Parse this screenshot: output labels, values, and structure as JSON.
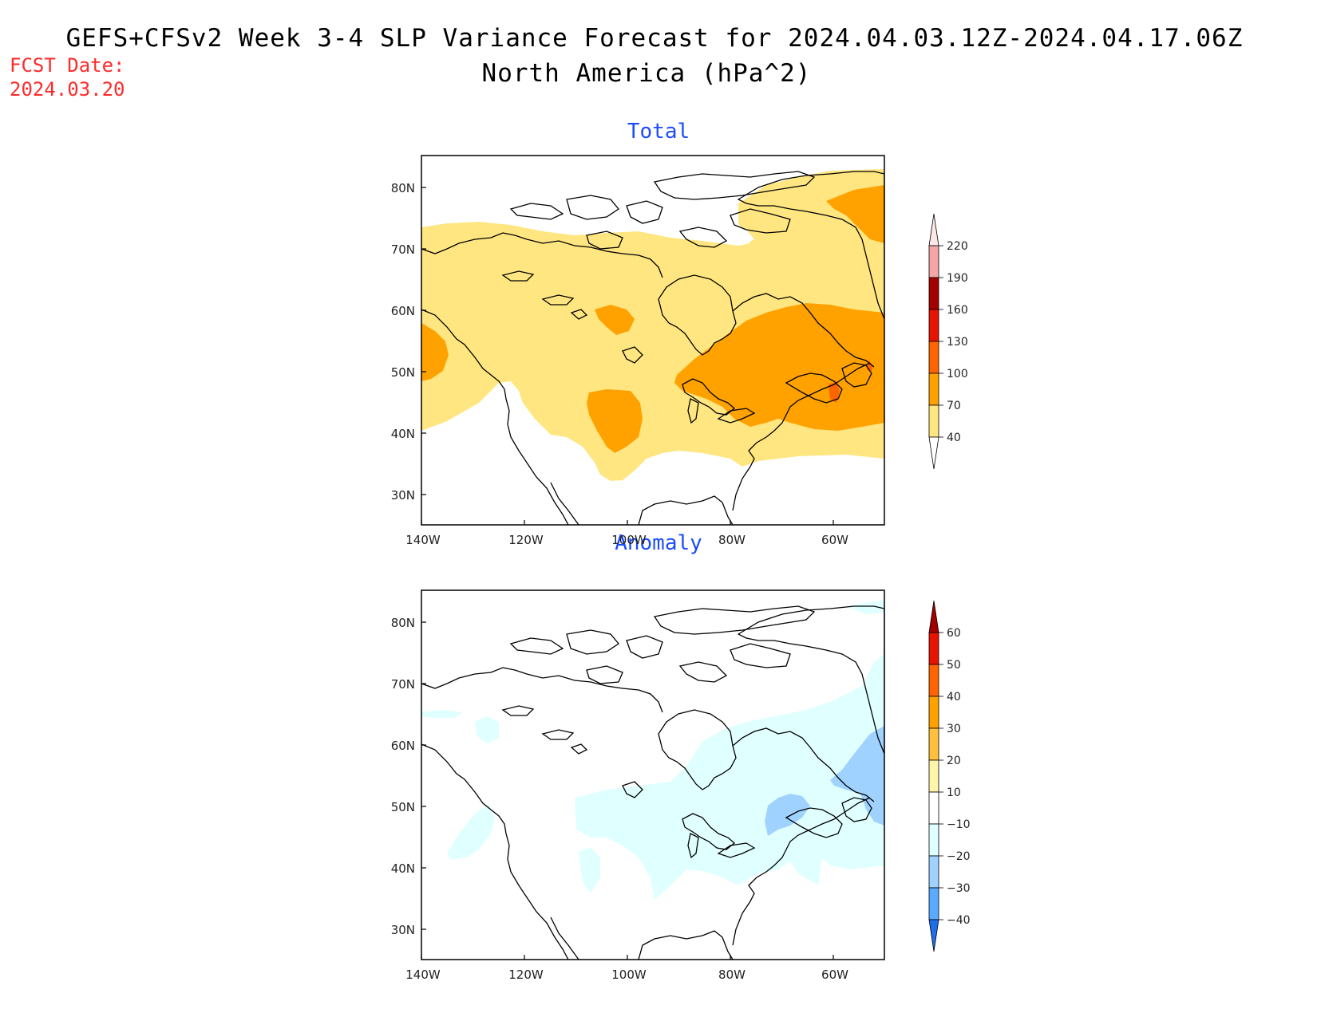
{
  "header": {
    "title_line1": "GEFS+CFSv2 Week 3-4 SLP Variance Forecast for 2024.04.03.12Z-2024.04.17.06Z",
    "title_line2": "North America (hPa^2)",
    "fcst_label": "FCST Date:",
    "fcst_date": "2024.03.20"
  },
  "panels": [
    {
      "title": "Total",
      "lat_labels": [
        "80N",
        "70N",
        "60N",
        "50N",
        "40N",
        "30N"
      ],
      "lon_labels": [
        "140W",
        "120W",
        "100W",
        "80W",
        "60W"
      ],
      "colorbar": {
        "levels": [
          "40",
          "70",
          "100",
          "130",
          "160",
          "190",
          "220"
        ],
        "colors": [
          "#ffe680",
          "#ffa200",
          "#ff6400",
          "#e61400",
          "#a50000",
          "#f4a6a6",
          "#fde6e6"
        ]
      }
    },
    {
      "title": "Anomaly",
      "lat_labels": [
        "80N",
        "70N",
        "60N",
        "50N",
        "40N",
        "30N"
      ],
      "lon_labels": [
        "140W",
        "120W",
        "100W",
        "80W",
        "60W"
      ],
      "colorbar": {
        "levels": [
          "60",
          "50",
          "40",
          "30",
          "20",
          "10",
          "−10",
          "−20",
          "−30",
          "−40"
        ],
        "colors": [
          "#a50000",
          "#e61400",
          "#ff6400",
          "#ffa200",
          "#ffc03c",
          "#fff5aa",
          "#ffffff",
          "#e0ffff",
          "#a0d2ff",
          "#5aaaff",
          "#1e6eeb"
        ]
      }
    }
  ]
}
